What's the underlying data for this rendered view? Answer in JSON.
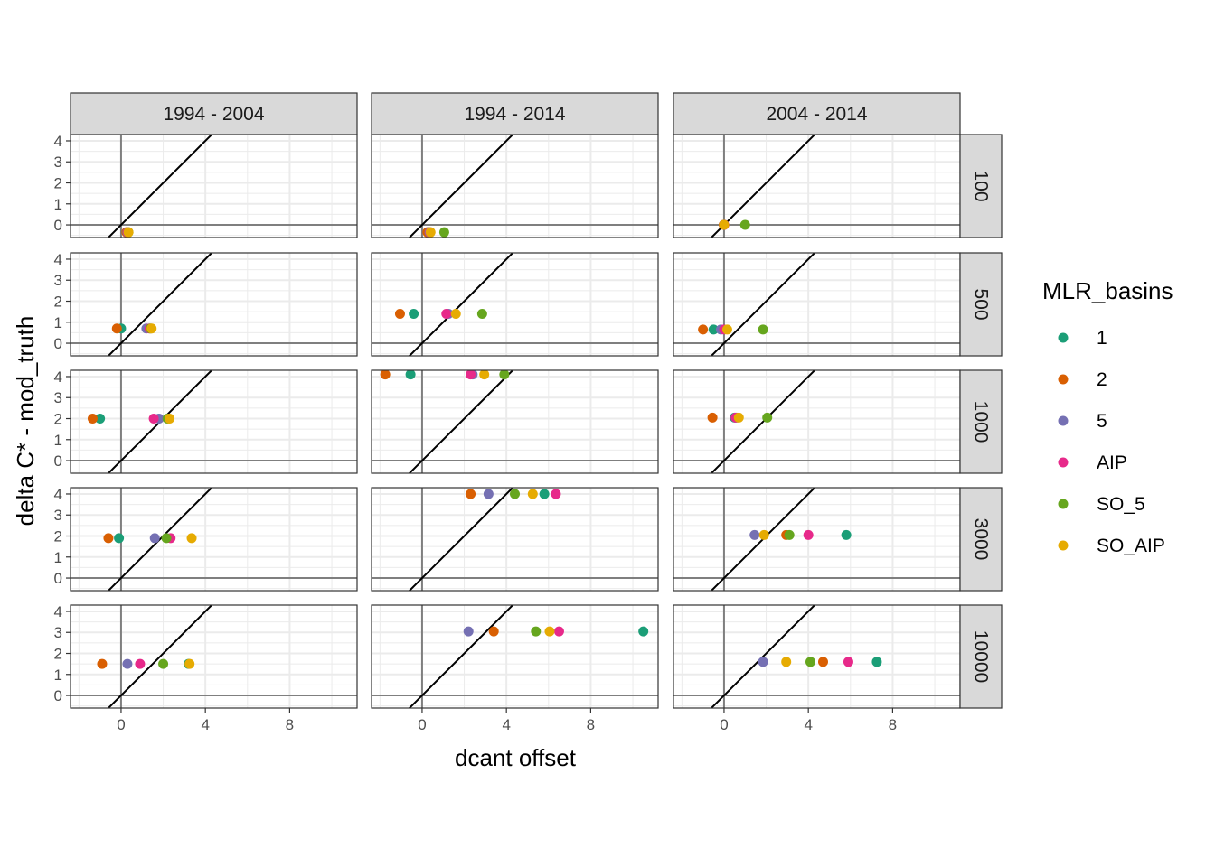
{
  "chart_data": {
    "type": "scatter",
    "xlabel": "dcant offset",
    "ylabel": "delta C* - mod_truth",
    "facet_cols": [
      "1994 - 2004",
      "1994 - 2014",
      "2004 - 2014"
    ],
    "facet_rows": [
      "100",
      "500",
      "1000",
      "3000",
      "10000"
    ],
    "xlim": [
      -2.4,
      11.2
    ],
    "ylim": [
      -0.6,
      4.3
    ],
    "x_ticks": [
      0,
      4,
      8
    ],
    "y_ticks": [
      0,
      1,
      2,
      3,
      4
    ],
    "reference_lines": {
      "vertical_x": 0,
      "horizontal_y": 0,
      "identity_slope": 1
    },
    "grid": true,
    "legend": {
      "title": "MLR_basins",
      "position": "right",
      "entries": [
        "1",
        "2",
        "5",
        "AIP",
        "SO_5",
        "SO_AIP"
      ]
    },
    "colors": {
      "1": "#1B9E77",
      "2": "#D95F02",
      "5": "#7570B3",
      "AIP": "#E7298A",
      "SO_5": "#66A61E",
      "SO_AIP": "#E6AB02"
    },
    "points": [
      {
        "col": 0,
        "row": 0,
        "basin": "1",
        "x": 0.3,
        "y": -0.35
      },
      {
        "col": 0,
        "row": 0,
        "basin": "2",
        "x": 0.25,
        "y": -0.35
      },
      {
        "col": 0,
        "row": 0,
        "basin": "5",
        "x": 0.3,
        "y": -0.35
      },
      {
        "col": 0,
        "row": 0,
        "basin": "AIP",
        "x": 0.32,
        "y": -0.35
      },
      {
        "col": 0,
        "row": 0,
        "basin": "SO_5",
        "x": 0.35,
        "y": -0.35
      },
      {
        "col": 0,
        "row": 0,
        "basin": "SO_AIP",
        "x": 0.35,
        "y": -0.35
      },
      {
        "col": 0,
        "row": 1,
        "basin": "1",
        "x": 0.0,
        "y": 0.7
      },
      {
        "col": 0,
        "row": 1,
        "basin": "2",
        "x": -0.2,
        "y": 0.7
      },
      {
        "col": 0,
        "row": 1,
        "basin": "5",
        "x": 1.2,
        "y": 0.7
      },
      {
        "col": 0,
        "row": 1,
        "basin": "AIP",
        "x": 1.35,
        "y": 0.7
      },
      {
        "col": 0,
        "row": 1,
        "basin": "SO_5",
        "x": 1.4,
        "y": 0.7
      },
      {
        "col": 0,
        "row": 1,
        "basin": "SO_AIP",
        "x": 1.45,
        "y": 0.7
      },
      {
        "col": 0,
        "row": 2,
        "basin": "1",
        "x": -1.0,
        "y": 2.0
      },
      {
        "col": 0,
        "row": 2,
        "basin": "2",
        "x": -1.35,
        "y": 2.0
      },
      {
        "col": 0,
        "row": 2,
        "basin": "5",
        "x": 1.8,
        "y": 2.0
      },
      {
        "col": 0,
        "row": 2,
        "basin": "AIP",
        "x": 1.55,
        "y": 2.0
      },
      {
        "col": 0,
        "row": 2,
        "basin": "SO_5",
        "x": 2.2,
        "y": 2.0
      },
      {
        "col": 0,
        "row": 2,
        "basin": "SO_AIP",
        "x": 2.3,
        "y": 2.0
      },
      {
        "col": 0,
        "row": 3,
        "basin": "1",
        "x": -0.1,
        "y": 1.9
      },
      {
        "col": 0,
        "row": 3,
        "basin": "2",
        "x": -0.6,
        "y": 1.9
      },
      {
        "col": 0,
        "row": 3,
        "basin": "5",
        "x": 1.6,
        "y": 1.9
      },
      {
        "col": 0,
        "row": 3,
        "basin": "AIP",
        "x": 2.35,
        "y": 1.9
      },
      {
        "col": 0,
        "row": 3,
        "basin": "SO_5",
        "x": 2.15,
        "y": 1.9
      },
      {
        "col": 0,
        "row": 3,
        "basin": "SO_AIP",
        "x": 3.35,
        "y": 1.9
      },
      {
        "col": 0,
        "row": 4,
        "basin": "1",
        "x": 3.2,
        "y": 1.5
      },
      {
        "col": 0,
        "row": 4,
        "basin": "2",
        "x": -0.9,
        "y": 1.5
      },
      {
        "col": 0,
        "row": 4,
        "basin": "5",
        "x": 0.3,
        "y": 1.5
      },
      {
        "col": 0,
        "row": 4,
        "basin": "AIP",
        "x": 0.9,
        "y": 1.5
      },
      {
        "col": 0,
        "row": 4,
        "basin": "SO_5",
        "x": 2.0,
        "y": 1.5
      },
      {
        "col": 0,
        "row": 4,
        "basin": "SO_AIP",
        "x": 3.25,
        "y": 1.5
      },
      {
        "col": 1,
        "row": 0,
        "basin": "1",
        "x": 0.3,
        "y": -0.35
      },
      {
        "col": 1,
        "row": 0,
        "basin": "2",
        "x": 0.25,
        "y": -0.35
      },
      {
        "col": 1,
        "row": 0,
        "basin": "5",
        "x": 0.35,
        "y": -0.35
      },
      {
        "col": 1,
        "row": 0,
        "basin": "AIP",
        "x": 0.38,
        "y": -0.35
      },
      {
        "col": 1,
        "row": 0,
        "basin": "SO_5",
        "x": 1.05,
        "y": -0.35
      },
      {
        "col": 1,
        "row": 0,
        "basin": "SO_AIP",
        "x": 0.4,
        "y": -0.35
      },
      {
        "col": 1,
        "row": 1,
        "basin": "1",
        "x": -0.4,
        "y": 1.4
      },
      {
        "col": 1,
        "row": 1,
        "basin": "2",
        "x": -1.05,
        "y": 1.4
      },
      {
        "col": 1,
        "row": 1,
        "basin": "5",
        "x": 1.25,
        "y": 1.4
      },
      {
        "col": 1,
        "row": 1,
        "basin": "AIP",
        "x": 1.15,
        "y": 1.4
      },
      {
        "col": 1,
        "row": 1,
        "basin": "SO_5",
        "x": 2.85,
        "y": 1.4
      },
      {
        "col": 1,
        "row": 1,
        "basin": "SO_AIP",
        "x": 1.6,
        "y": 1.4
      },
      {
        "col": 1,
        "row": 2,
        "basin": "1",
        "x": -0.55,
        "y": 4.1
      },
      {
        "col": 1,
        "row": 2,
        "basin": "2",
        "x": -1.75,
        "y": 4.1
      },
      {
        "col": 1,
        "row": 2,
        "basin": "5",
        "x": 2.4,
        "y": 4.1
      },
      {
        "col": 1,
        "row": 2,
        "basin": "AIP",
        "x": 2.3,
        "y": 4.1
      },
      {
        "col": 1,
        "row": 2,
        "basin": "SO_5",
        "x": 3.9,
        "y": 4.1
      },
      {
        "col": 1,
        "row": 2,
        "basin": "SO_AIP",
        "x": 2.95,
        "y": 4.1
      },
      {
        "col": 1,
        "row": 3,
        "basin": "1",
        "x": 5.8,
        "y": 4.0
      },
      {
        "col": 1,
        "row": 3,
        "basin": "2",
        "x": 2.3,
        "y": 4.0
      },
      {
        "col": 1,
        "row": 3,
        "basin": "5",
        "x": 3.15,
        "y": 4.0
      },
      {
        "col": 1,
        "row": 3,
        "basin": "AIP",
        "x": 6.35,
        "y": 4.0
      },
      {
        "col": 1,
        "row": 3,
        "basin": "SO_5",
        "x": 4.4,
        "y": 4.0
      },
      {
        "col": 1,
        "row": 3,
        "basin": "SO_AIP",
        "x": 5.25,
        "y": 4.0
      },
      {
        "col": 1,
        "row": 4,
        "basin": "1",
        "x": 10.5,
        "y": 3.05
      },
      {
        "col": 1,
        "row": 4,
        "basin": "2",
        "x": 3.4,
        "y": 3.05
      },
      {
        "col": 1,
        "row": 4,
        "basin": "5",
        "x": 2.2,
        "y": 3.05
      },
      {
        "col": 1,
        "row": 4,
        "basin": "AIP",
        "x": 6.5,
        "y": 3.05
      },
      {
        "col": 1,
        "row": 4,
        "basin": "SO_5",
        "x": 5.4,
        "y": 3.05
      },
      {
        "col": 1,
        "row": 4,
        "basin": "SO_AIP",
        "x": 6.05,
        "y": 3.05
      },
      {
        "col": 2,
        "row": 0,
        "basin": "1",
        "x": 0.0,
        "y": 0.0
      },
      {
        "col": 2,
        "row": 0,
        "basin": "2",
        "x": -0.02,
        "y": 0.0
      },
      {
        "col": 2,
        "row": 0,
        "basin": "5",
        "x": 0.0,
        "y": 0.0
      },
      {
        "col": 2,
        "row": 0,
        "basin": "AIP",
        "x": 0.01,
        "y": 0.0
      },
      {
        "col": 2,
        "row": 0,
        "basin": "SO_5",
        "x": 1.0,
        "y": 0.0
      },
      {
        "col": 2,
        "row": 0,
        "basin": "SO_AIP",
        "x": 0.0,
        "y": 0.0
      },
      {
        "col": 2,
        "row": 1,
        "basin": "1",
        "x": -0.5,
        "y": 0.65
      },
      {
        "col": 2,
        "row": 1,
        "basin": "2",
        "x": -1.0,
        "y": 0.65
      },
      {
        "col": 2,
        "row": 1,
        "basin": "5",
        "x": -0.15,
        "y": 0.65
      },
      {
        "col": 2,
        "row": 1,
        "basin": "AIP",
        "x": 0.0,
        "y": 0.65
      },
      {
        "col": 2,
        "row": 1,
        "basin": "SO_5",
        "x": 1.85,
        "y": 0.65
      },
      {
        "col": 2,
        "row": 1,
        "basin": "SO_AIP",
        "x": 0.15,
        "y": 0.65
      },
      {
        "col": 2,
        "row": 2,
        "basin": "1",
        "x": 0.5,
        "y": 2.05
      },
      {
        "col": 2,
        "row": 2,
        "basin": "2",
        "x": -0.55,
        "y": 2.05
      },
      {
        "col": 2,
        "row": 2,
        "basin": "5",
        "x": 0.6,
        "y": 2.05
      },
      {
        "col": 2,
        "row": 2,
        "basin": "AIP",
        "x": 0.55,
        "y": 2.05
      },
      {
        "col": 2,
        "row": 2,
        "basin": "SO_5",
        "x": 2.05,
        "y": 2.05
      },
      {
        "col": 2,
        "row": 2,
        "basin": "SO_AIP",
        "x": 0.7,
        "y": 2.05
      },
      {
        "col": 2,
        "row": 3,
        "basin": "1",
        "x": 5.8,
        "y": 2.05
      },
      {
        "col": 2,
        "row": 3,
        "basin": "2",
        "x": 2.95,
        "y": 2.05
      },
      {
        "col": 2,
        "row": 3,
        "basin": "5",
        "x": 1.45,
        "y": 2.05
      },
      {
        "col": 2,
        "row": 3,
        "basin": "AIP",
        "x": 4.0,
        "y": 2.05
      },
      {
        "col": 2,
        "row": 3,
        "basin": "SO_5",
        "x": 3.1,
        "y": 2.05
      },
      {
        "col": 2,
        "row": 3,
        "basin": "SO_AIP",
        "x": 1.9,
        "y": 2.05
      },
      {
        "col": 2,
        "row": 4,
        "basin": "1",
        "x": 7.25,
        "y": 1.6
      },
      {
        "col": 2,
        "row": 4,
        "basin": "2",
        "x": 4.7,
        "y": 1.6
      },
      {
        "col": 2,
        "row": 4,
        "basin": "5",
        "x": 1.85,
        "y": 1.6
      },
      {
        "col": 2,
        "row": 4,
        "basin": "AIP",
        "x": 5.9,
        "y": 1.6
      },
      {
        "col": 2,
        "row": 4,
        "basin": "SO_5",
        "x": 4.1,
        "y": 1.6
      },
      {
        "col": 2,
        "row": 4,
        "basin": "SO_AIP",
        "x": 2.95,
        "y": 1.6
      }
    ]
  }
}
